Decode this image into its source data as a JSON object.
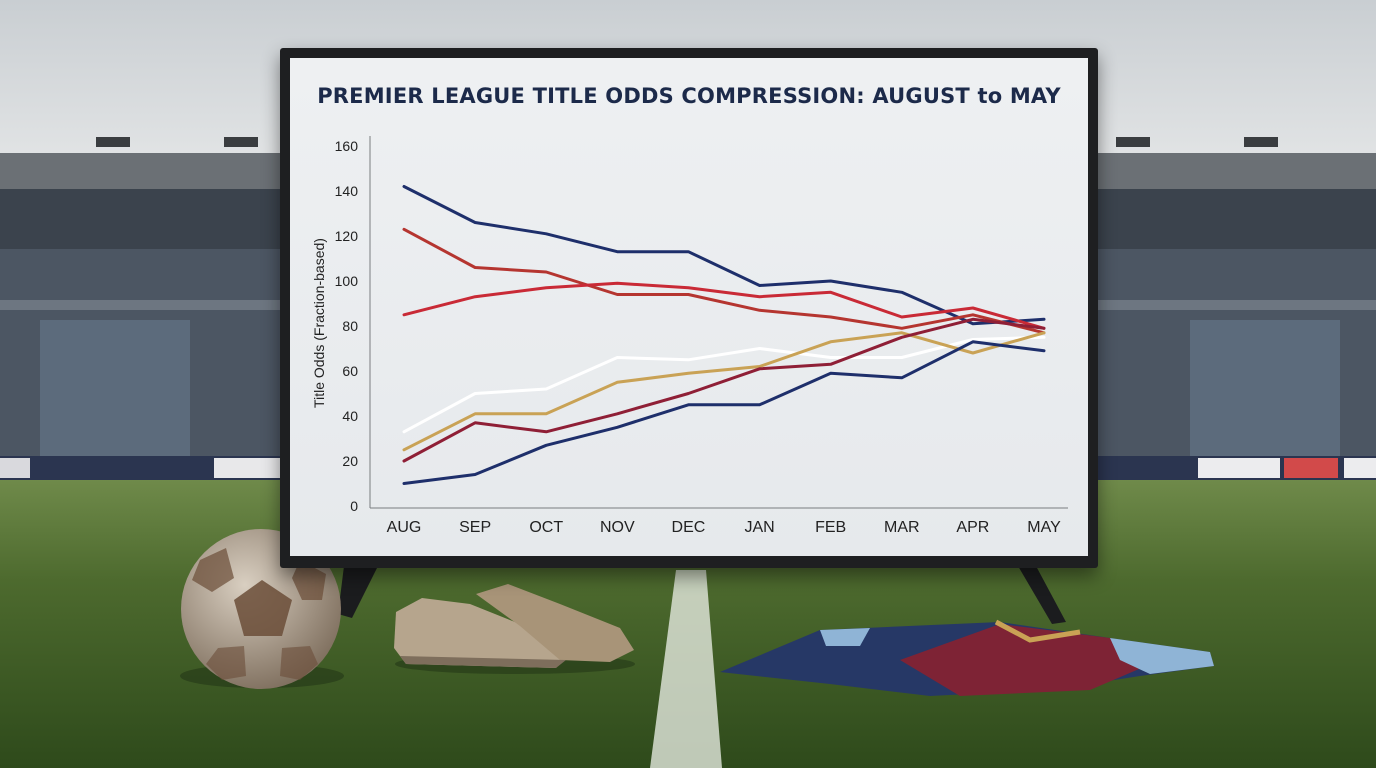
{
  "chart_data": {
    "type": "line",
    "title": "PREMIER LEAGUE TITLE ODDS COMPRESSION: AUGUST to MAY",
    "xlabel": "",
    "ylabel": "Title Odds (Fraction-based)",
    "categories": [
      "AUG",
      "SEP",
      "OCT",
      "NOV",
      "DEC",
      "JAN",
      "FEB",
      "MAR",
      "APR",
      "MAY"
    ],
    "ylim": [
      0,
      160
    ],
    "yticks": [
      0,
      20,
      40,
      60,
      80,
      100,
      120,
      140,
      160
    ],
    "grid": false,
    "legend": "none",
    "series": [
      {
        "color": "#1e2f6b",
        "values": [
          142,
          126,
          121,
          113,
          113,
          98,
          100,
          95,
          81,
          83
        ]
      },
      {
        "color": "#b53530",
        "values": [
          123,
          106,
          104,
          94,
          94,
          87,
          84,
          79,
          85,
          77
        ]
      },
      {
        "color": "#c92a36",
        "values": [
          85,
          93,
          97,
          99,
          97,
          93,
          95,
          84,
          88,
          79
        ]
      },
      {
        "color": "#ffffff",
        "values": [
          33,
          50,
          52,
          66,
          65,
          70,
          66,
          66,
          74,
          75
        ]
      },
      {
        "color": "#c9a255",
        "values": [
          25,
          41,
          41,
          55,
          59,
          62,
          73,
          77,
          68,
          77
        ]
      },
      {
        "color": "#8f1f36",
        "values": [
          20,
          37,
          33,
          41,
          50,
          61,
          63,
          75,
          83,
          79
        ]
      },
      {
        "color": "#1e2f6b",
        "values": [
          10,
          14,
          27,
          35,
          45,
          45,
          59,
          57,
          73,
          69
        ]
      }
    ]
  }
}
